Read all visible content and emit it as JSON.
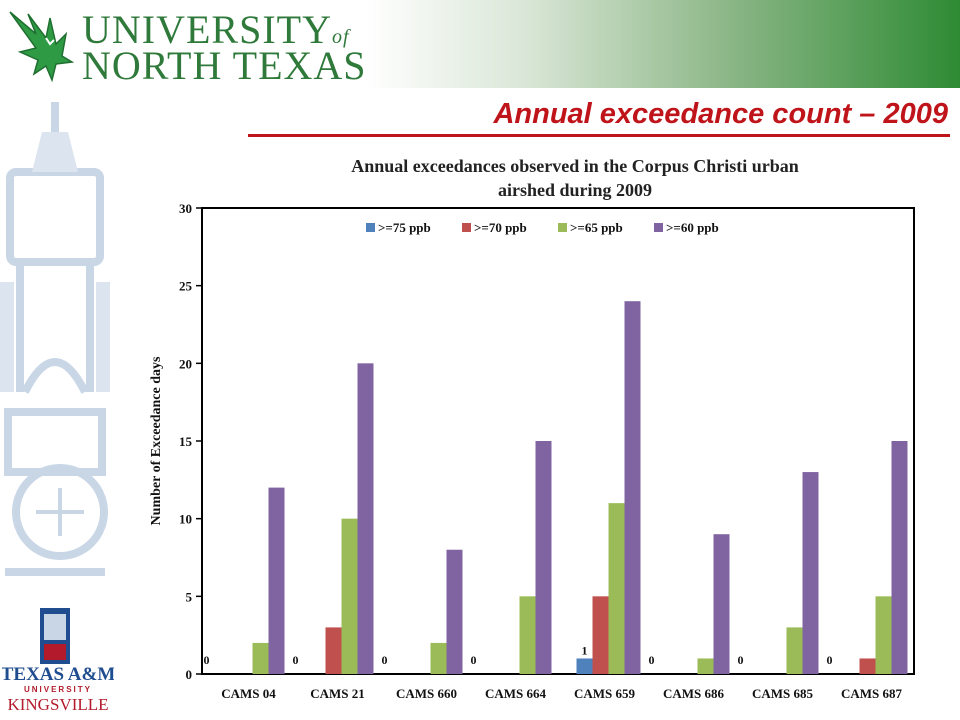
{
  "header": {
    "university_line1": "UNIVERSITY",
    "university_of": "of",
    "university_line2": "NORTH TEXAS"
  },
  "slide_title": "Annual exceedance count – 2009",
  "footer_logo": {
    "name_line1": "TEXAS A&M",
    "name_line2": "UNIVERSITY",
    "name_line3": "KINGSVILLE"
  },
  "colors": {
    "title_red": "#c0141b",
    "unt_green": "#2f7a3b",
    "series_75": "#4f81bd",
    "series_70": "#c0504d",
    "series_65": "#9bbb59",
    "series_60": "#8064a2"
  },
  "chart_data": {
    "type": "bar",
    "title_line1": "Annual exceedances observed in the Corpus Christi urban",
    "title_line2": "airshed during 2009",
    "xlabel": "",
    "ylabel": "Number of Exceedance days",
    "ylim": [
      0,
      30
    ],
    "yticks": [
      0,
      5,
      10,
      15,
      20,
      25,
      30
    ],
    "grid": false,
    "legend_position": "top",
    "categories": [
      "CAMS 04",
      "CAMS 21",
      "CAMS 660",
      "CAMS 664",
      "CAMS 659",
      "CAMS 686",
      "CAMS 685",
      "CAMS 687"
    ],
    "series": [
      {
        "name": ">=75 ppb",
        "color": "#4f81bd",
        "values": [
          0,
          0,
          0,
          0,
          1,
          0,
          0,
          0
        ]
      },
      {
        "name": ">=70 ppb",
        "color": "#c0504d",
        "values": [
          0,
          3,
          0,
          0,
          5,
          0,
          0,
          1
        ]
      },
      {
        "name": ">=65 ppb",
        "color": "#9bbb59",
        "values": [
          2,
          10,
          2,
          5,
          11,
          1,
          3,
          5
        ]
      },
      {
        "name": ">=60 ppb",
        "color": "#8064a2",
        "values": [
          12,
          20,
          8,
          15,
          24,
          9,
          13,
          15
        ]
      }
    ],
    "data_labels": [
      "0",
      "0",
      "0",
      "0",
      "1",
      "0",
      "0",
      "0"
    ]
  }
}
